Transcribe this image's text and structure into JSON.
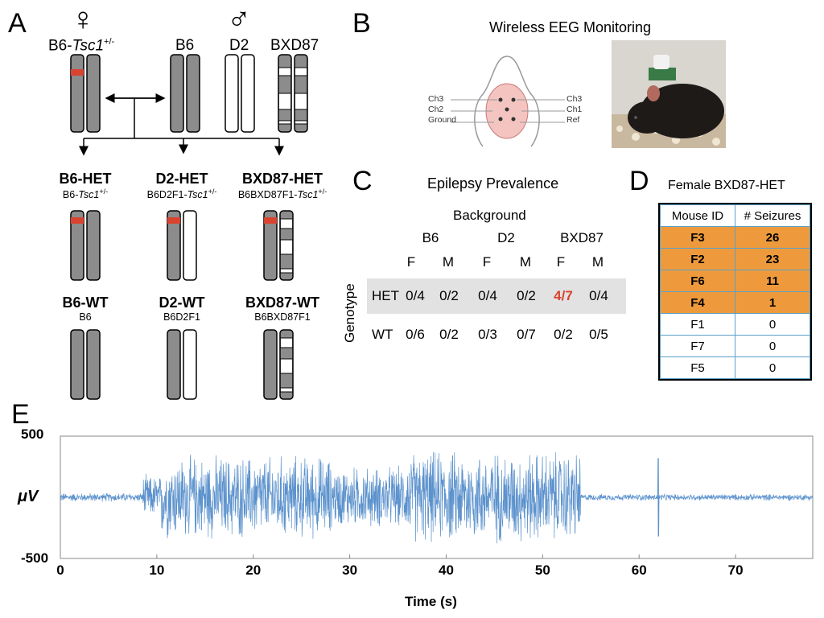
{
  "panels": {
    "a": "A",
    "b": "B",
    "c": "C",
    "d": "D",
    "e": "E"
  },
  "panelA": {
    "female_symbol": "♀",
    "male_symbol": "♂",
    "parent_het": {
      "prefix": "B6-",
      "gene": "Tsc1",
      "sup": "+/-"
    },
    "parent_b6": "B6",
    "parent_d2": "D2",
    "parent_bxd87": "BXD87",
    "crosses": [
      {
        "name": "B6-HET",
        "sub_prefix": "B6-",
        "gene": "Tsc1",
        "sup": "+/-"
      },
      {
        "name": "D2-HET",
        "sub_prefix": "B6D2F1-",
        "gene": "Tsc1",
        "sup": "+/-"
      },
      {
        "name": "BXD87-HET",
        "sub_prefix": "B6BXD87F1-",
        "gene": "Tsc1",
        "sup": "+/-"
      }
    ],
    "wildtypes": [
      {
        "name": "B6-WT",
        "sub": "B6"
      },
      {
        "name": "D2-WT",
        "sub": "B6D2F1"
      },
      {
        "name": "BXD87-WT",
        "sub": "B6BXD87F1"
      }
    ],
    "colors": {
      "chrom_gray": "#8c8c8c",
      "mutation": "#d9432f"
    }
  },
  "panelB": {
    "title": "Wireless EEG Monitoring",
    "left_labels": [
      "Ch3",
      "Ch2",
      "Ground"
    ],
    "right_labels": [
      "Ch3",
      "Ch1",
      "Ref"
    ]
  },
  "panelC": {
    "title": "Epilepsy Prevalence",
    "background_label": "Background",
    "genotype_label": "Genotype",
    "strains": [
      "B6",
      "D2",
      "BXD87"
    ],
    "sexes": [
      "F",
      "M",
      "F",
      "M",
      "F",
      "M"
    ],
    "rows": [
      {
        "label": "HET",
        "values": [
          "0/4",
          "0/2",
          "0/4",
          "0/2",
          "4/7",
          "0/4"
        ],
        "highlight_index": 4
      },
      {
        "label": "WT",
        "values": [
          "0/6",
          "0/2",
          "0/3",
          "0/7",
          "0/2",
          "0/5"
        ]
      }
    ],
    "highlight_color": "#d9432f"
  },
  "panelD": {
    "title": "Female BXD87-HET",
    "columns": [
      "Mouse ID",
      "# Seizures"
    ],
    "rows": [
      {
        "id": "F3",
        "n": "26",
        "hi": true
      },
      {
        "id": "F2",
        "n": "23",
        "hi": true
      },
      {
        "id": "F6",
        "n": "11",
        "hi": true
      },
      {
        "id": "F4",
        "n": "1",
        "hi": true
      },
      {
        "id": "F1",
        "n": "0",
        "hi": false
      },
      {
        "id": "F7",
        "n": "0",
        "hi": false
      },
      {
        "id": "F5",
        "n": "0",
        "hi": false
      }
    ],
    "highlight_color": "#ee9a3c"
  },
  "chart_data": {
    "type": "line",
    "xlabel": "Time (s)",
    "ylabel": "μV",
    "xlim": [
      0,
      78
    ],
    "ylim": [
      -500,
      500
    ],
    "x_ticks": [
      "0",
      "10",
      "20",
      "30",
      "40",
      "50",
      "60",
      "70"
    ],
    "y_ticks": [
      "500",
      "-500"
    ],
    "series_color": "#3f7fc4",
    "segments": [
      {
        "x": [
          0,
          8.5
        ],
        "amplitude": 40
      },
      {
        "x": [
          8.5,
          10.5
        ],
        "amplitude": 200
      },
      {
        "x": [
          10.5,
          28
        ],
        "amplitude": 380
      },
      {
        "x": [
          28,
          36
        ],
        "amplitude": 280
      },
      {
        "x": [
          36,
          54
        ],
        "amplitude": 420
      },
      {
        "x": [
          54,
          78
        ],
        "amplitude": 30
      }
    ],
    "spikes": [
      {
        "x": 62,
        "amplitude": 320
      }
    ]
  }
}
